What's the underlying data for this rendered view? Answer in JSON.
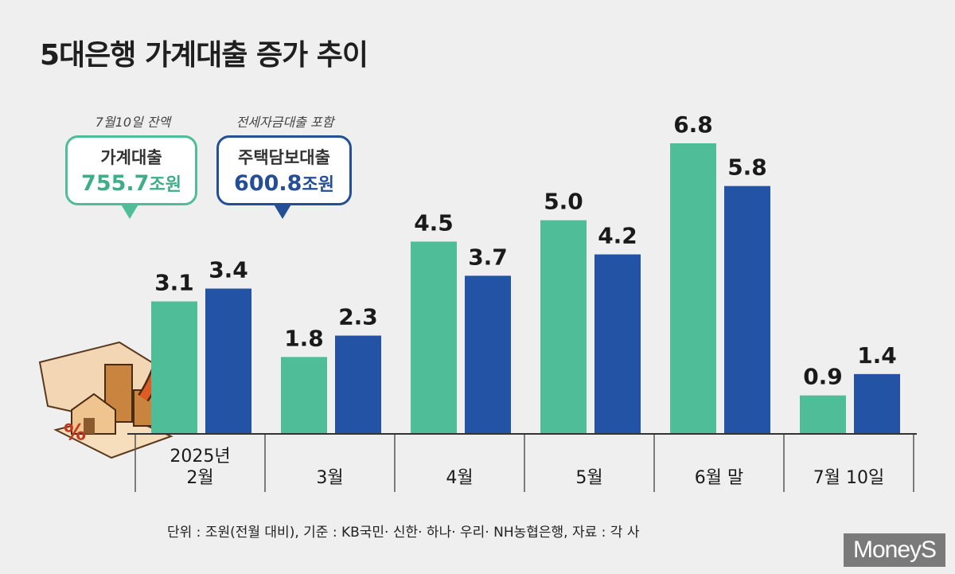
{
  "title": "5대은행 가계대출 증가 추이",
  "callouts": [
    {
      "caption": "7월10일 잔액",
      "label": "가계대출",
      "amount_num": "755.7",
      "amount_unit": "조원"
    },
    {
      "caption": "전세자금대출 포함",
      "label": "주택담보대출",
      "amount_num": "600.8",
      "amount_unit": "조원"
    }
  ],
  "footnote": "단위 : 조원(전월 대비), 기준 : KB국민· 신한· 하나· 우리· NH농협은행, 자료 : 각 사",
  "logo": "MoneyS",
  "colors": {
    "household": "#4fbd98",
    "mortgage": "#2353a4",
    "background": "#efefef",
    "household_border": "#4fbd98",
    "mortgage_border": "#244e96"
  },
  "chart_data": {
    "type": "bar",
    "categories": [
      [
        "2025년",
        "2월"
      ],
      [
        "3월"
      ],
      [
        "4월"
      ],
      [
        "5월"
      ],
      [
        "6월 말"
      ],
      [
        "7월 10일"
      ]
    ],
    "series": [
      {
        "name": "가계대출",
        "values": [
          3.1,
          1.8,
          4.5,
          5.0,
          6.8,
          0.9
        ],
        "labels": [
          "3.1",
          "1.8",
          "4.5",
          "5.0",
          "6.8",
          "0.9"
        ]
      },
      {
        "name": "주택담보대출",
        "values": [
          3.4,
          2.3,
          3.7,
          4.2,
          5.8,
          1.4
        ],
        "labels": [
          "3.4",
          "2.3",
          "3.7",
          "4.2",
          "5.8",
          "1.4"
        ]
      }
    ],
    "unit": "조원",
    "ylim": [
      0,
      6.8
    ],
    "grid": false,
    "legend": "callouts top-left"
  }
}
